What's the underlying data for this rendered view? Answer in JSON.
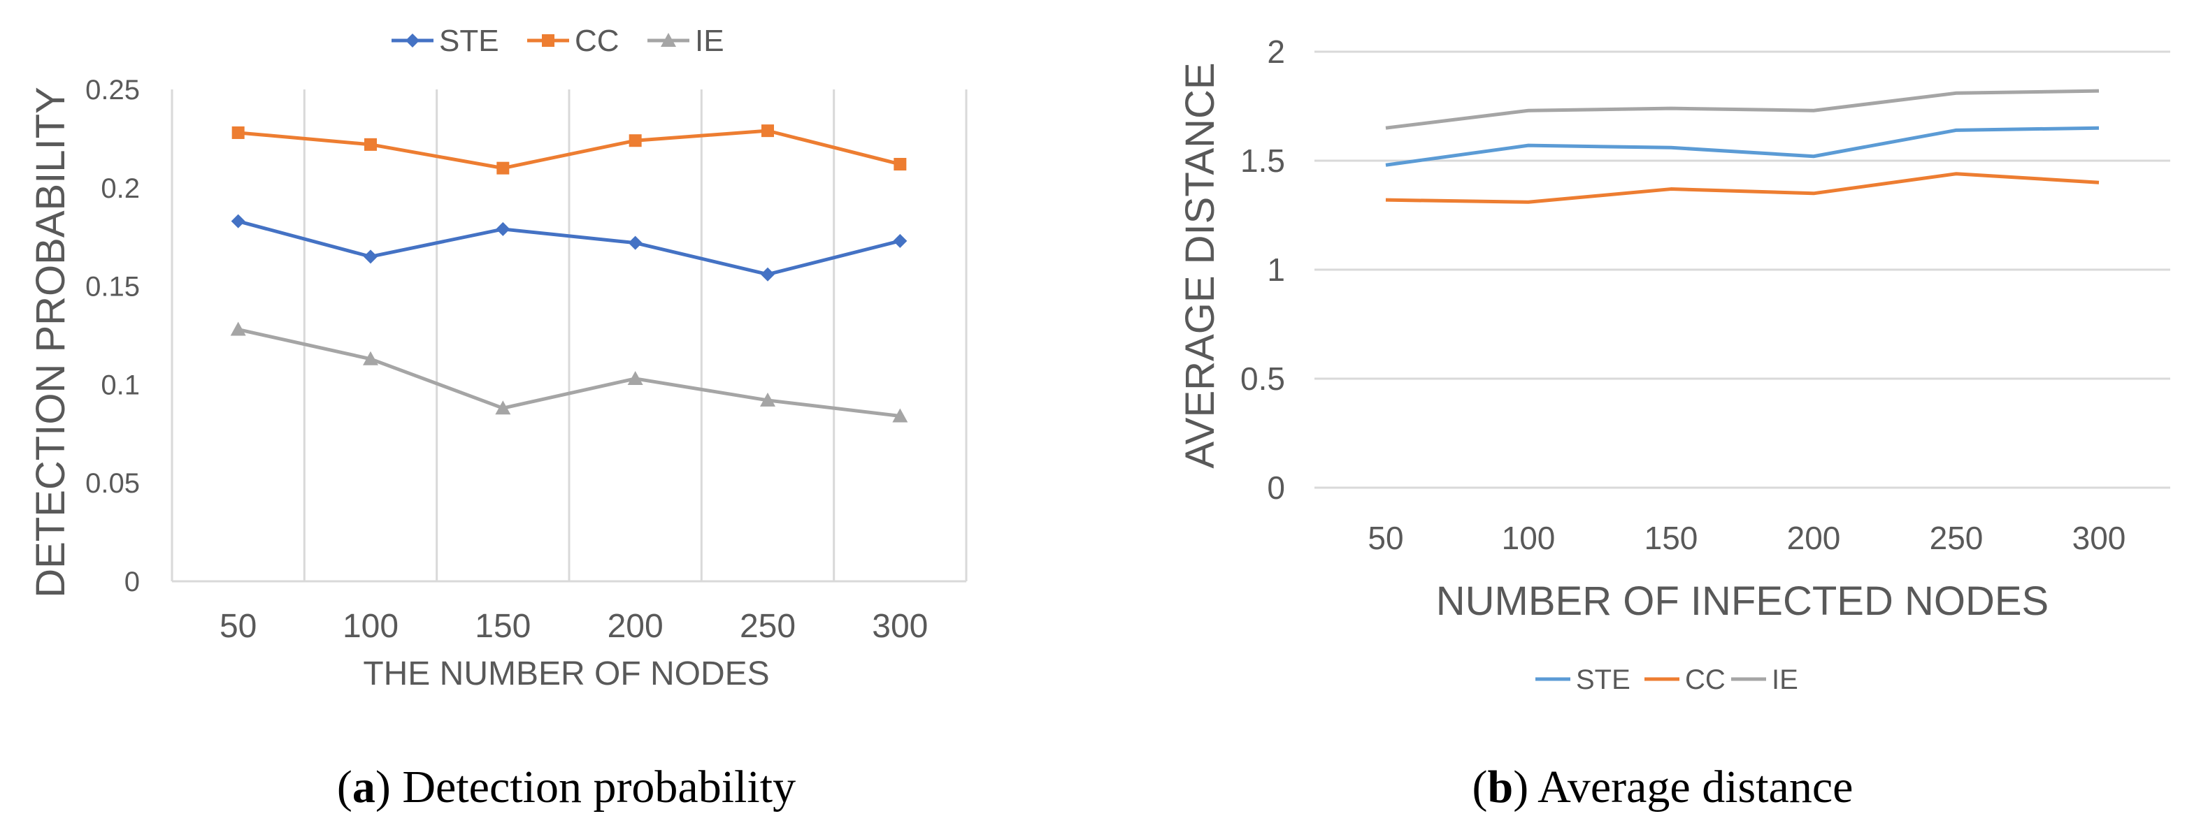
{
  "chart_data": [
    {
      "type": "line",
      "title": "",
      "xlabel": "THE NUMBER OF NODES",
      "ylabel": "DETECTION PROBABILITY",
      "categories": [
        "50",
        "100",
        "150",
        "200",
        "250",
        "300"
      ],
      "ylim": [
        0,
        0.25
      ],
      "yticks": [
        "0",
        "0.05",
        "0.1",
        "0.15",
        "0.2",
        "0.25"
      ],
      "grid": "vertical",
      "legend_position": "top",
      "markers": true,
      "series": [
        {
          "name": "STE",
          "color": "#4472c4",
          "marker": "diamond",
          "values": [
            0.183,
            0.165,
            0.179,
            0.172,
            0.156,
            0.173
          ]
        },
        {
          "name": "CC",
          "color": "#ed7d31",
          "marker": "square",
          "values": [
            0.228,
            0.222,
            0.21,
            0.224,
            0.229,
            0.212
          ]
        },
        {
          "name": "IE",
          "color": "#a5a5a5",
          "marker": "triangle",
          "values": [
            0.128,
            0.113,
            0.088,
            0.103,
            0.092,
            0.084
          ]
        }
      ],
      "caption_label": "a",
      "caption_text": " Detection probability"
    },
    {
      "type": "line",
      "title": "",
      "xlabel": "NUMBER OF INFECTED NODES",
      "ylabel": "AVERAGE DISTANCE",
      "categories": [
        "50",
        "100",
        "150",
        "200",
        "250",
        "300"
      ],
      "ylim": [
        0,
        2
      ],
      "yticks": [
        "0",
        "0.5",
        "1",
        "1.5",
        "2"
      ],
      "grid": "horizontal",
      "legend_position": "bottom",
      "markers": false,
      "series": [
        {
          "name": "STE",
          "color": "#5b9bd5",
          "values": [
            1.48,
            1.57,
            1.56,
            1.52,
            1.64,
            1.65
          ]
        },
        {
          "name": "CC",
          "color": "#ed7d31",
          "values": [
            1.32,
            1.31,
            1.37,
            1.35,
            1.44,
            1.4
          ]
        },
        {
          "name": "IE",
          "color": "#a5a5a5",
          "values": [
            1.65,
            1.73,
            1.74,
            1.73,
            1.81,
            1.82
          ]
        }
      ],
      "caption_label": "b",
      "caption_text": " Average distance"
    }
  ]
}
